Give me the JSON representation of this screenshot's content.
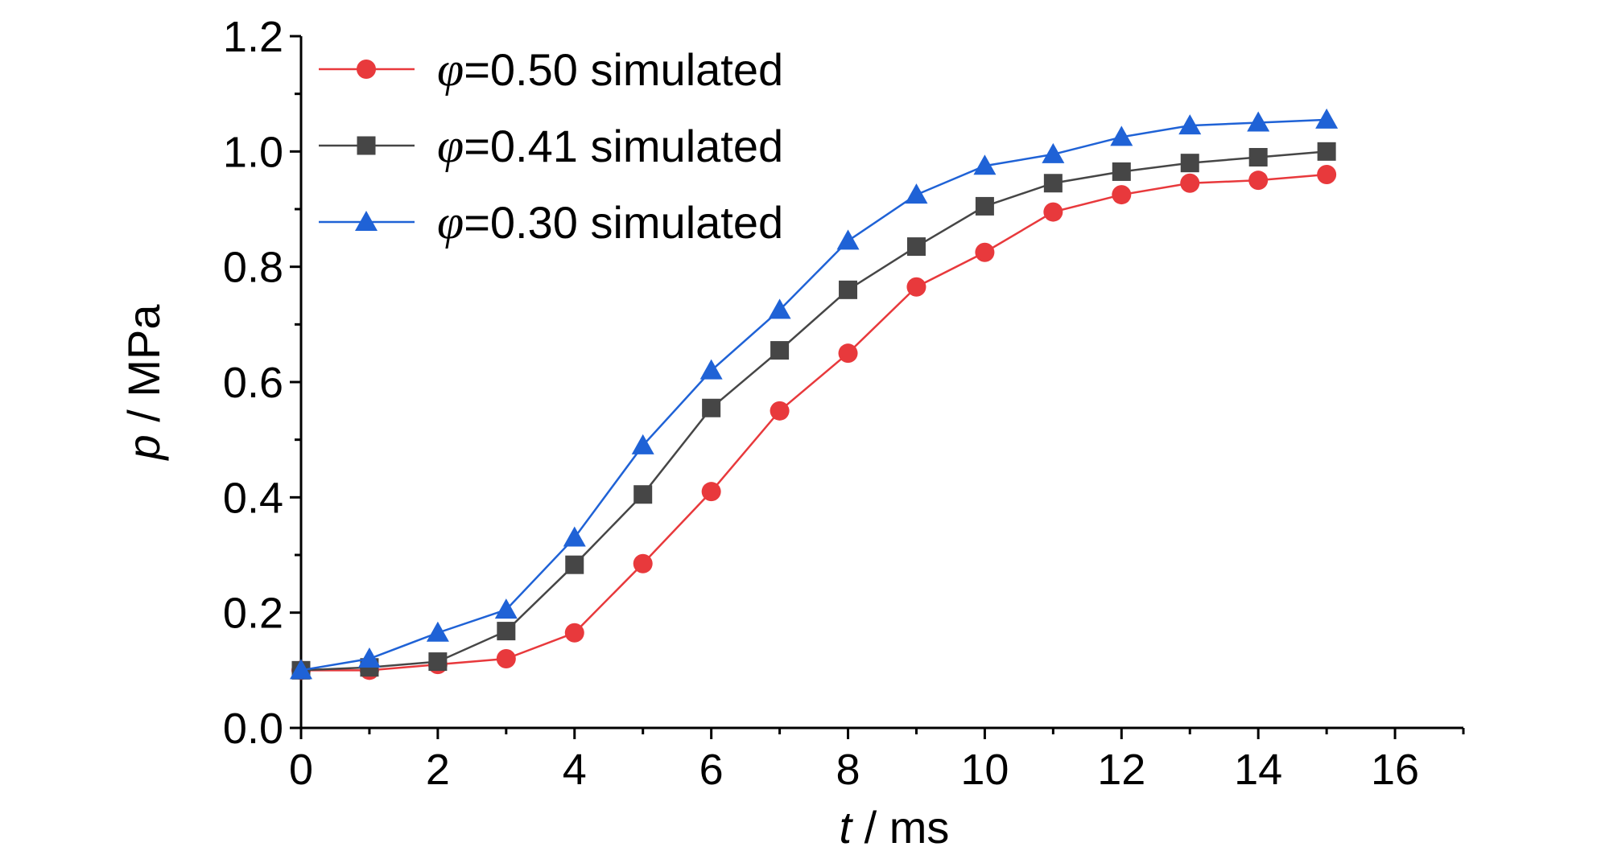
{
  "chart_data": {
    "type": "line",
    "x": [
      0,
      1,
      2,
      3,
      4,
      5,
      6,
      7,
      8,
      9,
      10,
      11,
      12,
      13,
      14,
      15
    ],
    "series": [
      {
        "name": "=0.50 simulated",
        "symbol": "φ",
        "marker": "circle",
        "color": "#e8393c",
        "values": [
          0.1,
          0.1,
          0.11,
          0.12,
          0.165,
          0.285,
          0.41,
          0.55,
          0.65,
          0.765,
          0.825,
          0.895,
          0.925,
          0.945,
          0.95,
          0.96
        ]
      },
      {
        "name": "=0.41 simulated",
        "symbol": "φ",
        "marker": "square",
        "color": "#464646",
        "values": [
          0.1,
          0.105,
          0.115,
          0.168,
          0.283,
          0.405,
          0.555,
          0.655,
          0.76,
          0.835,
          0.905,
          0.945,
          0.965,
          0.98,
          0.99,
          1.0
        ]
      },
      {
        "name": "=0.30 simulated",
        "symbol": "φ",
        "marker": "triangle",
        "color": "#1f62d6",
        "values": [
          0.1,
          0.12,
          0.165,
          0.205,
          0.33,
          0.49,
          0.62,
          0.725,
          0.845,
          0.925,
          0.975,
          0.995,
          1.025,
          1.045,
          1.05,
          1.055
        ]
      }
    ],
    "xlabel": {
      "var": "t",
      "unit": " / ms"
    },
    "ylabel": {
      "var": "p",
      "unit": " / MPa"
    },
    "xlim": [
      0,
      17
    ],
    "ylim": [
      0,
      1.2
    ],
    "xticks": [
      "0",
      "2",
      "4",
      "6",
      "8",
      "10",
      "12",
      "14",
      "16"
    ],
    "yticks": [
      "0.0",
      "0.2",
      "0.4",
      "0.6",
      "0.8",
      "1.0",
      "1.2"
    ],
    "grid": false,
    "legend_position": "top-left"
  }
}
